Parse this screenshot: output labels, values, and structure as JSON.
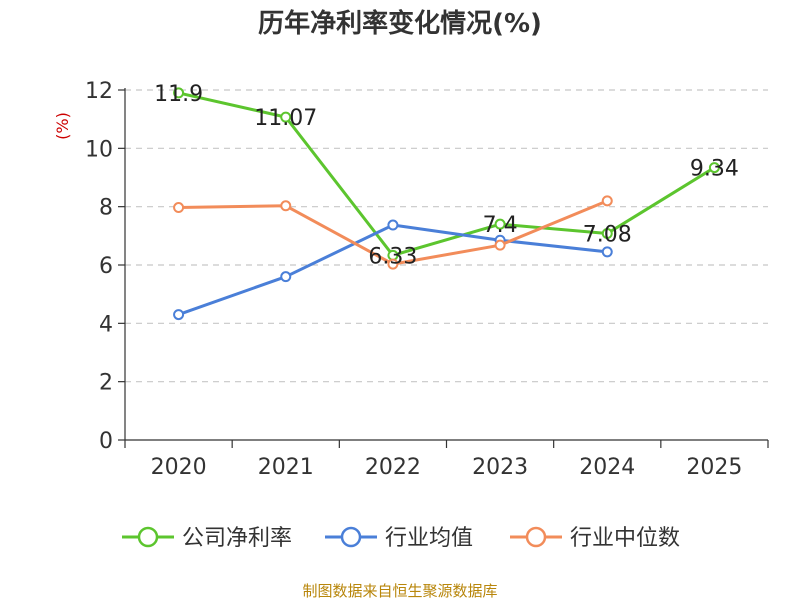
{
  "chart_data": {
    "type": "line",
    "title": "历年净利率变化情况(%)",
    "ylabel": "(%)",
    "xlabel": "",
    "categories": [
      "2020",
      "2021",
      "2022",
      "2023",
      "2024",
      "2025"
    ],
    "ylim": [
      0,
      12
    ],
    "yticks": [
      0,
      2,
      4,
      6,
      8,
      10,
      12
    ],
    "grid": true,
    "legend_position": "bottom",
    "series": [
      {
        "name": "公司净利率",
        "color": "#5cc52e",
        "values": [
          11.9,
          11.07,
          6.33,
          7.4,
          7.08,
          9.34
        ],
        "labels": [
          "11.9",
          "11.07",
          "6.33",
          "7.4",
          "7.08",
          "9.34"
        ]
      },
      {
        "name": "行业均值",
        "color": "#4a7fd8",
        "values": [
          4.3,
          5.6,
          7.37,
          6.85,
          6.45,
          null
        ]
      },
      {
        "name": "行业中位数",
        "color": "#f28c5a",
        "values": [
          7.97,
          8.03,
          6.03,
          6.68,
          8.2,
          null
        ]
      }
    ]
  },
  "source": "制图数据来自恒生聚源数据库"
}
